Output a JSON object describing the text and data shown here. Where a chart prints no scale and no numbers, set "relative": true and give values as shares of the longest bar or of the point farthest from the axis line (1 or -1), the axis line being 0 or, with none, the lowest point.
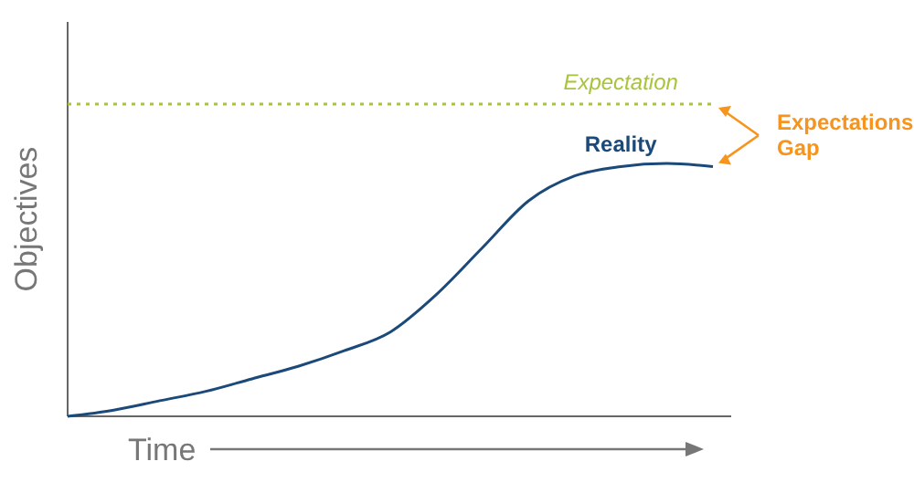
{
  "chart_data": {
    "type": "line",
    "relative": true,
    "xlabel": "Time",
    "ylabel": "Objectives",
    "marker": "none",
    "categories": [
      null,
      null,
      null,
      null,
      null,
      null,
      null,
      null,
      null,
      null,
      null,
      null,
      null,
      null,
      null
    ],
    "series": [
      {
        "name": "Expectation",
        "color": "#a8c43a",
        "line_style": "dotted",
        "values": [
          1,
          1,
          1,
          1,
          1,
          1,
          1,
          1,
          1,
          1,
          1,
          1,
          1,
          1,
          1
        ]
      },
      {
        "name": "Reality",
        "color": "#1b4a7a",
        "line_style": "solid",
        "values": [
          0,
          0.02,
          0.05,
          0.08,
          0.12,
          0.16,
          0.21,
          0.27,
          0.39,
          0.54,
          0.69,
          0.77,
          0.8,
          0.81,
          0.8
        ]
      }
    ],
    "annotations": [
      "Expectations Gap"
    ]
  }
}
